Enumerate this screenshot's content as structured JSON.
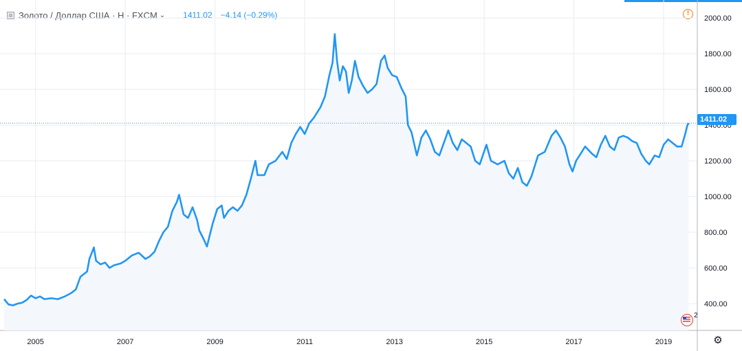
{
  "header": {
    "symbol": "Золото / Доллар США · Н · FXCM",
    "dropdown_glyph": "⌄",
    "last_price": "1411.02",
    "change": "−4.14 (−0.29%)"
  },
  "price_tag": "1411.02",
  "alert_icon_glyph": "!",
  "event_flag_count": "2",
  "gear_glyph": "⚙",
  "colors": {
    "line": "#2196f3",
    "area_fill": "#f4f8fd",
    "grid": "#e8ebf0",
    "axis_text": "#131722",
    "accent": "#2196f3",
    "alert": "#f57c00"
  },
  "chart_data": {
    "type": "area",
    "title": "",
    "xlabel": "",
    "ylabel": "",
    "x_ticks": [
      "2005",
      "2007",
      "2009",
      "2011",
      "2013",
      "2015",
      "2017",
      "2019"
    ],
    "y_ticks": [
      "400.00",
      "600.00",
      "800.00",
      "1000.00",
      "1200.00",
      "1400.00",
      "1600.00",
      "1800.00",
      "2000.00"
    ],
    "xlim": [
      2004.3,
      2019.75
    ],
    "ylim": [
      250,
      2070
    ],
    "grid": true,
    "last_value_line": 1411.02,
    "series": [
      {
        "values": [
          [
            2004.3,
            425
          ],
          [
            2004.4,
            395
          ],
          [
            2004.5,
            390
          ],
          [
            2004.6,
            400
          ],
          [
            2004.7,
            405
          ],
          [
            2004.8,
            420
          ],
          [
            2004.9,
            445
          ],
          [
            2005.0,
            430
          ],
          [
            2005.1,
            440
          ],
          [
            2005.2,
            425
          ],
          [
            2005.35,
            430
          ],
          [
            2005.5,
            425
          ],
          [
            2005.65,
            440
          ],
          [
            2005.8,
            460
          ],
          [
            2005.9,
            480
          ],
          [
            2006.0,
            550
          ],
          [
            2006.15,
            580
          ],
          [
            2006.2,
            650
          ],
          [
            2006.3,
            715
          ],
          [
            2006.35,
            640
          ],
          [
            2006.45,
            620
          ],
          [
            2006.55,
            630
          ],
          [
            2006.65,
            600
          ],
          [
            2006.75,
            615
          ],
          [
            2006.9,
            625
          ],
          [
            2007.0,
            640
          ],
          [
            2007.15,
            670
          ],
          [
            2007.3,
            685
          ],
          [
            2007.45,
            650
          ],
          [
            2007.55,
            665
          ],
          [
            2007.65,
            690
          ],
          [
            2007.75,
            750
          ],
          [
            2007.85,
            800
          ],
          [
            2007.95,
            830
          ],
          [
            2008.05,
            920
          ],
          [
            2008.15,
            970
          ],
          [
            2008.2,
            1010
          ],
          [
            2008.3,
            900
          ],
          [
            2008.4,
            880
          ],
          [
            2008.5,
            940
          ],
          [
            2008.6,
            870
          ],
          [
            2008.65,
            810
          ],
          [
            2008.75,
            760
          ],
          [
            2008.82,
            720
          ],
          [
            2008.9,
            800
          ],
          [
            2008.95,
            850
          ],
          [
            2009.05,
            930
          ],
          [
            2009.15,
            950
          ],
          [
            2009.2,
            880
          ],
          [
            2009.3,
            920
          ],
          [
            2009.4,
            940
          ],
          [
            2009.5,
            920
          ],
          [
            2009.6,
            950
          ],
          [
            2009.7,
            1010
          ],
          [
            2009.8,
            1100
          ],
          [
            2009.9,
            1200
          ],
          [
            2009.95,
            1120
          ],
          [
            2010.1,
            1120
          ],
          [
            2010.2,
            1180
          ],
          [
            2010.35,
            1200
          ],
          [
            2010.5,
            1250
          ],
          [
            2010.6,
            1210
          ],
          [
            2010.7,
            1300
          ],
          [
            2010.8,
            1350
          ],
          [
            2010.9,
            1390
          ],
          [
            2011.0,
            1350
          ],
          [
            2011.1,
            1410
          ],
          [
            2011.2,
            1440
          ],
          [
            2011.35,
            1500
          ],
          [
            2011.45,
            1560
          ],
          [
            2011.55,
            1680
          ],
          [
            2011.62,
            1750
          ],
          [
            2011.67,
            1910
          ],
          [
            2011.72,
            1760
          ],
          [
            2011.78,
            1650
          ],
          [
            2011.85,
            1730
          ],
          [
            2011.92,
            1700
          ],
          [
            2011.98,
            1580
          ],
          [
            2012.05,
            1650
          ],
          [
            2012.12,
            1760
          ],
          [
            2012.2,
            1670
          ],
          [
            2012.3,
            1620
          ],
          [
            2012.4,
            1580
          ],
          [
            2012.5,
            1600
          ],
          [
            2012.6,
            1630
          ],
          [
            2012.7,
            1760
          ],
          [
            2012.78,
            1790
          ],
          [
            2012.85,
            1720
          ],
          [
            2012.95,
            1680
          ],
          [
            2013.05,
            1670
          ],
          [
            2013.15,
            1610
          ],
          [
            2013.25,
            1560
          ],
          [
            2013.3,
            1400
          ],
          [
            2013.38,
            1360
          ],
          [
            2013.5,
            1230
          ],
          [
            2013.6,
            1330
          ],
          [
            2013.7,
            1370
          ],
          [
            2013.8,
            1320
          ],
          [
            2013.9,
            1250
          ],
          [
            2014.0,
            1230
          ],
          [
            2014.1,
            1300
          ],
          [
            2014.2,
            1370
          ],
          [
            2014.3,
            1300
          ],
          [
            2014.4,
            1260
          ],
          [
            2014.5,
            1320
          ],
          [
            2014.6,
            1300
          ],
          [
            2014.7,
            1280
          ],
          [
            2014.8,
            1200
          ],
          [
            2014.9,
            1180
          ],
          [
            2015.05,
            1290
          ],
          [
            2015.15,
            1200
          ],
          [
            2015.3,
            1180
          ],
          [
            2015.45,
            1200
          ],
          [
            2015.55,
            1130
          ],
          [
            2015.65,
            1100
          ],
          [
            2015.75,
            1160
          ],
          [
            2015.85,
            1080
          ],
          [
            2015.95,
            1060
          ],
          [
            2016.05,
            1110
          ],
          [
            2016.2,
            1230
          ],
          [
            2016.35,
            1250
          ],
          [
            2016.5,
            1340
          ],
          [
            2016.6,
            1370
          ],
          [
            2016.7,
            1330
          ],
          [
            2016.8,
            1280
          ],
          [
            2016.9,
            1180
          ],
          [
            2016.97,
            1140
          ],
          [
            2017.05,
            1200
          ],
          [
            2017.15,
            1240
          ],
          [
            2017.25,
            1280
          ],
          [
            2017.4,
            1240
          ],
          [
            2017.5,
            1220
          ],
          [
            2017.6,
            1290
          ],
          [
            2017.7,
            1340
          ],
          [
            2017.8,
            1280
          ],
          [
            2017.9,
            1260
          ],
          [
            2018.0,
            1330
          ],
          [
            2018.1,
            1340
          ],
          [
            2018.2,
            1330
          ],
          [
            2018.3,
            1310
          ],
          [
            2018.4,
            1300
          ],
          [
            2018.5,
            1240
          ],
          [
            2018.6,
            1200
          ],
          [
            2018.68,
            1180
          ],
          [
            2018.8,
            1230
          ],
          [
            2018.9,
            1220
          ],
          [
            2019.0,
            1290
          ],
          [
            2019.1,
            1320
          ],
          [
            2019.2,
            1300
          ],
          [
            2019.3,
            1280
          ],
          [
            2019.4,
            1280
          ],
          [
            2019.48,
            1350
          ],
          [
            2019.53,
            1400
          ],
          [
            2019.56,
            1411.02
          ]
        ]
      }
    ]
  }
}
